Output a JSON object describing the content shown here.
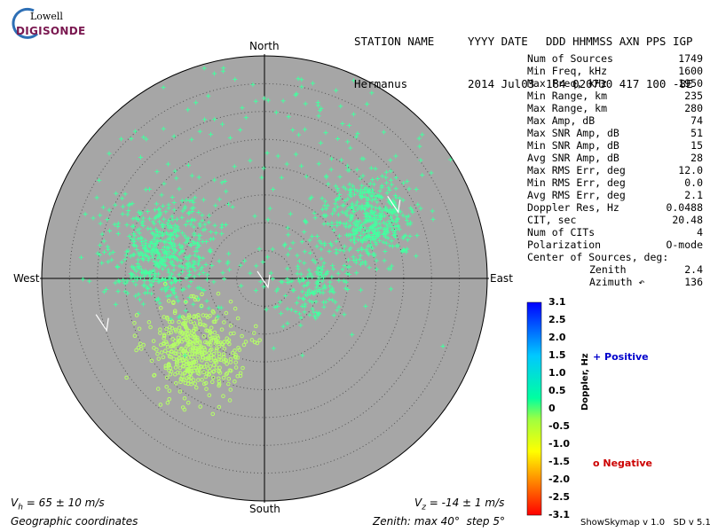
{
  "logo": {
    "line1": "Lowell",
    "line2": "DIGISONDE"
  },
  "header": {
    "labels": {
      "station_name": "STATION NAME",
      "date": "YYYY DATE",
      "cols": "DDD HHMMSS AXN PPS IGP"
    },
    "values": {
      "station_name": "Hermanus",
      "date": "2014 Jul03",
      "cols": "184 020730 417 100 -8E"
    }
  },
  "stats": [
    {
      "label": "Num of Sources",
      "value": "1749"
    },
    {
      "label": "Min Freq, kHz",
      "value": "1600"
    },
    {
      "label": "Max Freq, kHz",
      "value": "1950"
    },
    {
      "label": "Min Range, km",
      "value": "235"
    },
    {
      "label": "Max Range, km",
      "value": "280"
    },
    {
      "label": "Max Amp, dB",
      "value": "74"
    },
    {
      "label": "Max SNR Amp, dB",
      "value": "51"
    },
    {
      "label": "Min SNR Amp, dB",
      "value": "15"
    },
    {
      "label": "Avg SNR Amp, dB",
      "value": "28"
    },
    {
      "label": "Max RMS Err, deg",
      "value": "12.0"
    },
    {
      "label": "Min RMS Err, deg",
      "value": "0.0"
    },
    {
      "label": "Avg RMS Err, deg",
      "value": "2.1"
    },
    {
      "label": "Doppler Res, Hz",
      "value": "0.0488"
    },
    {
      "label": "CIT, sec",
      "value": "20.48"
    },
    {
      "label": "Num of CITs",
      "value": "4"
    },
    {
      "label": "Polarization",
      "value": "O-mode"
    }
  ],
  "center_heading": "Center of Sources, deg:",
  "center": {
    "zenith_label": "Zenith",
    "zenith_value": "2.4",
    "azimuth_label": "Azimuth ↶",
    "azimuth_value": "136"
  },
  "directions": {
    "north": "North",
    "south": "South",
    "east": "East",
    "west": "West"
  },
  "colorbar": {
    "label": "Doppler, Hz",
    "ticks": [
      "3.1",
      "2.5",
      "2.0",
      "1.5",
      "1.0",
      "0.5",
      "0",
      "-0.5",
      "-1.0",
      "-1.5",
      "-2.0",
      "-2.5",
      "-3.1"
    ],
    "range": [
      -3.1,
      3.1
    ]
  },
  "legend": {
    "positive": "+ Positive",
    "negative": "o Negative",
    "positive_color": "#0000cc",
    "negative_color": "#cc0000"
  },
  "footer": {
    "vh_prefix": "V",
    "vh_sub": "h",
    "vh_rest": " = 65 ± 10 m/s",
    "vz_prefix": "V",
    "vz_sub": "z",
    "vz_rest": " = -14 ± 1 m/s",
    "coords": "Geographic coordinates",
    "zenith_info": "Zenith: max 40°  step 5°",
    "version": "ShowSkymap v 1.0   SD v 5.1"
  },
  "chart_data": {
    "type": "scatter",
    "projection": "polar-skymap",
    "zenith_max_deg": 40,
    "zenith_step_deg": 5,
    "colors": {
      "disk": "#a6a6a6",
      "positive_marker": "#44ffa0",
      "negative_marker": "#b4ff66"
    },
    "clusters": [
      {
        "name": "",
        "polarity": "positive",
        "center_az_deg": 60,
        "center_zen_deg": 22,
        "spread_deg": 4.0,
        "count": 420
      },
      {
        "name": "",
        "polarity": "positive",
        "center_az_deg": 285,
        "center_zen_deg": 19,
        "spread_deg": 5.0,
        "count": 520
      },
      {
        "name": "",
        "polarity": "positive",
        "center_az_deg": 95,
        "center_zen_deg": 9,
        "spread_deg": 3.5,
        "count": 160
      },
      {
        "name": "",
        "polarity": "negative",
        "center_az_deg": 225,
        "center_zen_deg": 18,
        "spread_deg": 4.0,
        "count": 450
      },
      {
        "name": "",
        "polarity": "positive",
        "center_az_deg": 0,
        "center_zen_deg": 20,
        "spread_deg": 16,
        "count": 200
      }
    ],
    "velocity_vectors": [
      {
        "az_deg": 60,
        "zen_deg": 27
      },
      {
        "az_deg": 255,
        "zen_deg": 30
      },
      {
        "az_deg": 0,
        "zen_deg": 0
      }
    ]
  }
}
